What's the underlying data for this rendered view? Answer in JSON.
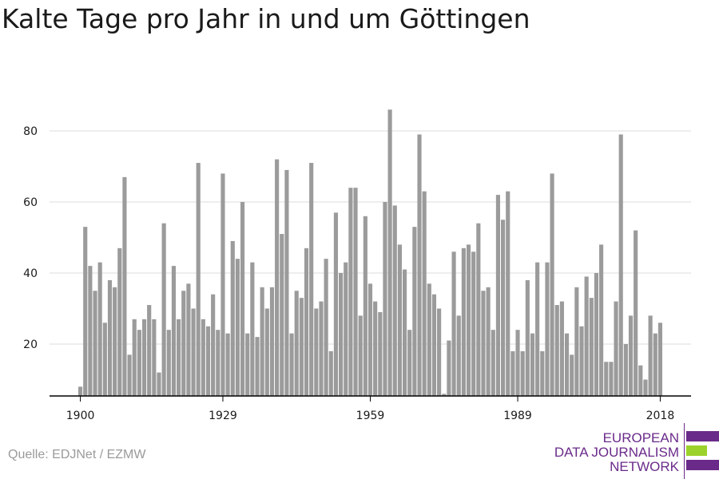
{
  "title": "Kalte Tage pro Jahr in und um Göttingen",
  "source": "Quelle: EDJNet / EZMW",
  "logo": {
    "line1": "EUROPEAN",
    "line2": "DATA JOURNALISM",
    "line3": "NETWORK",
    "colors": {
      "purple": "#6a2a8a",
      "green": "#9cd22c"
    }
  },
  "colors": {
    "bar": "#9b9b9b",
    "grid": "#dddddd",
    "axis": "#000000",
    "text": "#1a1a1a"
  },
  "chart_data": {
    "type": "bar",
    "x_start": 1900,
    "x_end": 2018,
    "xticks": [
      1900,
      1929,
      1959,
      1989,
      2018
    ],
    "yticks": [
      20,
      40,
      60,
      80
    ],
    "ylim": [
      5,
      90
    ],
    "grid": true,
    "values": [
      8,
      53,
      42,
      35,
      43,
      26,
      38,
      36,
      47,
      67,
      17,
      27,
      24,
      27,
      31,
      27,
      12,
      54,
      24,
      42,
      27,
      35,
      37,
      30,
      71,
      27,
      25,
      34,
      24,
      68,
      23,
      49,
      44,
      60,
      23,
      43,
      22,
      36,
      30,
      36,
      72,
      51,
      69,
      23,
      35,
      33,
      47,
      71,
      30,
      32,
      44,
      18,
      57,
      40,
      43,
      64,
      64,
      28,
      56,
      37,
      32,
      29,
      60,
      86,
      59,
      48,
      41,
      24,
      53,
      79,
      63,
      37,
      34,
      30,
      6,
      21,
      46,
      28,
      47,
      48,
      46,
      54,
      35,
      36,
      24,
      62,
      55,
      63,
      18,
      24,
      18,
      38,
      23,
      43,
      18,
      43,
      68,
      31,
      32,
      23,
      17,
      36,
      25,
      39,
      33,
      40,
      48,
      15,
      15,
      32,
      79,
      20,
      28,
      52,
      14,
      10,
      28,
      23,
      26
    ]
  }
}
